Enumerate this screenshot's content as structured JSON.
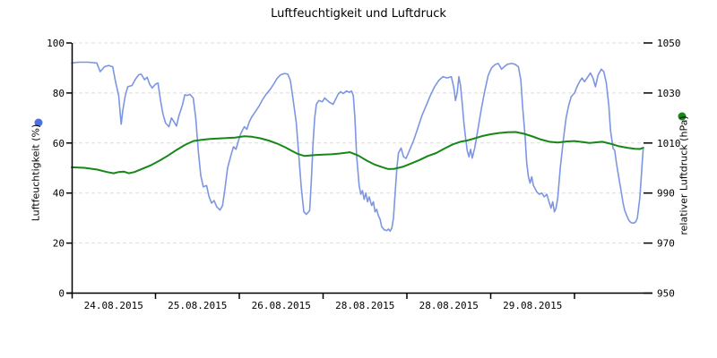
{
  "title": "Luftfeuchtigkeit und Luftdruck",
  "chart_data": {
    "type": "line",
    "title": "Luftfeuchtigkeit und Luftdruck",
    "grid": "horizontal-dashed",
    "x_axis": {
      "tick_labels": [
        "24.08.2015",
        "25.08.2015",
        "26.08.2015",
        "28.08.2015",
        "28.08.2015",
        "29.08.2015"
      ],
      "days_shown": 6.82
    },
    "y_left": {
      "label": "Luftfeuchtigkeit (%)",
      "min": 0,
      "max": 100,
      "ticks": [
        0,
        20,
        40,
        60,
        80,
        100
      ]
    },
    "y_right": {
      "label": "relativer Luftdruck (hPa)",
      "min": 950,
      "max": 1050,
      "ticks": [
        950,
        970,
        990,
        1010,
        1030,
        1050
      ]
    },
    "series": [
      {
        "name": "Luftfeuchtigkeit",
        "axis": "left",
        "color": "#7D96E3",
        "marker_color": "#4D71E0",
        "width": 1.6,
        "points": [
          [
            0.0,
            92
          ],
          [
            0.08,
            92.3
          ],
          [
            0.2,
            92.3
          ],
          [
            0.3,
            92
          ],
          [
            0.34,
            88.5
          ],
          [
            0.39,
            90.5
          ],
          [
            0.44,
            91
          ],
          [
            0.49,
            90.5
          ],
          [
            0.52,
            85
          ],
          [
            0.56,
            79
          ],
          [
            0.59,
            67.5
          ],
          [
            0.61,
            73
          ],
          [
            0.64,
            79
          ],
          [
            0.67,
            82.5
          ],
          [
            0.72,
            83
          ],
          [
            0.76,
            85.5
          ],
          [
            0.8,
            87.3
          ],
          [
            0.83,
            87.5
          ],
          [
            0.87,
            85.3
          ],
          [
            0.9,
            86.3
          ],
          [
            0.93,
            83.5
          ],
          [
            0.96,
            82
          ],
          [
            1.0,
            83.5
          ],
          [
            1.03,
            84
          ],
          [
            1.06,
            77
          ],
          [
            1.09,
            71.5
          ],
          [
            1.12,
            68
          ],
          [
            1.16,
            66.5
          ],
          [
            1.19,
            70
          ],
          [
            1.22,
            68.5
          ],
          [
            1.25,
            66.8
          ],
          [
            1.28,
            71
          ],
          [
            1.32,
            75
          ],
          [
            1.35,
            79.3
          ],
          [
            1.38,
            79
          ],
          [
            1.41,
            79.5
          ],
          [
            1.45,
            78
          ],
          [
            1.48,
            70
          ],
          [
            1.51,
            57
          ],
          [
            1.54,
            47
          ],
          [
            1.57,
            42.5
          ],
          [
            1.61,
            43
          ],
          [
            1.64,
            38.5
          ],
          [
            1.67,
            36
          ],
          [
            1.7,
            37
          ],
          [
            1.73,
            34.5
          ],
          [
            1.77,
            33.2
          ],
          [
            1.8,
            35
          ],
          [
            1.83,
            42
          ],
          [
            1.86,
            50
          ],
          [
            1.9,
            55
          ],
          [
            1.93,
            58.5
          ],
          [
            1.96,
            57.5
          ],
          [
            1.99,
            61
          ],
          [
            2.02,
            64
          ],
          [
            2.06,
            66.5
          ],
          [
            2.09,
            65.5
          ],
          [
            2.12,
            68.5
          ],
          [
            2.15,
            70.5
          ],
          [
            2.19,
            72.5
          ],
          [
            2.24,
            75
          ],
          [
            2.28,
            77.5
          ],
          [
            2.32,
            79.5
          ],
          [
            2.37,
            81.5
          ],
          [
            2.41,
            83.5
          ],
          [
            2.45,
            85.8
          ],
          [
            2.49,
            87.2
          ],
          [
            2.54,
            87.8
          ],
          [
            2.58,
            87.5
          ],
          [
            2.61,
            85
          ],
          [
            2.64,
            78
          ],
          [
            2.68,
            68
          ],
          [
            2.71,
            55
          ],
          [
            2.74,
            42
          ],
          [
            2.77,
            32.5
          ],
          [
            2.8,
            31.5
          ],
          [
            2.84,
            33
          ],
          [
            2.86,
            45
          ],
          [
            2.88,
            60
          ],
          [
            2.9,
            70
          ],
          [
            2.92,
            75.5
          ],
          [
            2.95,
            77
          ],
          [
            2.99,
            76.5
          ],
          [
            3.02,
            78
          ],
          [
            3.05,
            77
          ],
          [
            3.08,
            76.2
          ],
          [
            3.12,
            75.5
          ],
          [
            3.15,
            77.5
          ],
          [
            3.18,
            79.5
          ],
          [
            3.21,
            80.5
          ],
          [
            3.24,
            79.8
          ],
          [
            3.28,
            80.8
          ],
          [
            3.31,
            80.3
          ],
          [
            3.34,
            80.8
          ],
          [
            3.36,
            79
          ],
          [
            3.38,
            70
          ],
          [
            3.4,
            55
          ],
          [
            3.43,
            43
          ],
          [
            3.45,
            39.5
          ],
          [
            3.47,
            41
          ],
          [
            3.49,
            37.5
          ],
          [
            3.51,
            40
          ],
          [
            3.53,
            36.5
          ],
          [
            3.55,
            38.5
          ],
          [
            3.58,
            35
          ],
          [
            3.6,
            36.5
          ],
          [
            3.62,
            32.5
          ],
          [
            3.64,
            33.5
          ],
          [
            3.66,
            31
          ],
          [
            3.68,
            29.5
          ],
          [
            3.7,
            26.5
          ],
          [
            3.73,
            25.3
          ],
          [
            3.76,
            25
          ],
          [
            3.78,
            25.6
          ],
          [
            3.8,
            24.8
          ],
          [
            3.82,
            26
          ],
          [
            3.84,
            30
          ],
          [
            3.86,
            40
          ],
          [
            3.88,
            50
          ],
          [
            3.9,
            56
          ],
          [
            3.93,
            58
          ],
          [
            3.96,
            54.5
          ],
          [
            3.99,
            53.8
          ],
          [
            4.03,
            57
          ],
          [
            4.08,
            61
          ],
          [
            4.13,
            66
          ],
          [
            4.18,
            71
          ],
          [
            4.23,
            75
          ],
          [
            4.28,
            79
          ],
          [
            4.33,
            82.5
          ],
          [
            4.38,
            85
          ],
          [
            4.43,
            86.5
          ],
          [
            4.48,
            86
          ],
          [
            4.53,
            86.5
          ],
          [
            4.56,
            82
          ],
          [
            4.58,
            77
          ],
          [
            4.6,
            80
          ],
          [
            4.62,
            86.5
          ],
          [
            4.64,
            83
          ],
          [
            4.66,
            76
          ],
          [
            4.68,
            68
          ],
          [
            4.7,
            62
          ],
          [
            4.72,
            57
          ],
          [
            4.74,
            54.5
          ],
          [
            4.76,
            57.5
          ],
          [
            4.78,
            54
          ],
          [
            4.81,
            58
          ],
          [
            4.85,
            66
          ],
          [
            4.89,
            74
          ],
          [
            4.93,
            81
          ],
          [
            4.97,
            87
          ],
          [
            5.01,
            90
          ],
          [
            5.05,
            91.3
          ],
          [
            5.09,
            91.8
          ],
          [
            5.13,
            89.5
          ],
          [
            5.16,
            90.5
          ],
          [
            5.2,
            91.5
          ],
          [
            5.25,
            91.8
          ],
          [
            5.29,
            91.5
          ],
          [
            5.33,
            90.5
          ],
          [
            5.36,
            85
          ],
          [
            5.38,
            75
          ],
          [
            5.41,
            63
          ],
          [
            5.43,
            52
          ],
          [
            5.45,
            46.5
          ],
          [
            5.47,
            44
          ],
          [
            5.49,
            46.5
          ],
          [
            5.51,
            43
          ],
          [
            5.55,
            40.5
          ],
          [
            5.58,
            39.5
          ],
          [
            5.61,
            40
          ],
          [
            5.64,
            38.5
          ],
          [
            5.67,
            39.5
          ],
          [
            5.7,
            36
          ],
          [
            5.72,
            34
          ],
          [
            5.74,
            36.5
          ],
          [
            5.76,
            32.5
          ],
          [
            5.78,
            34
          ],
          [
            5.8,
            38
          ],
          [
            5.83,
            50
          ],
          [
            5.87,
            62
          ],
          [
            5.9,
            70
          ],
          [
            5.93,
            75
          ],
          [
            5.96,
            78.5
          ],
          [
            6.0,
            80
          ],
          [
            6.03,
            82.5
          ],
          [
            6.06,
            84.5
          ],
          [
            6.09,
            86
          ],
          [
            6.12,
            84.5
          ],
          [
            6.16,
            86.5
          ],
          [
            6.19,
            88
          ],
          [
            6.22,
            86
          ],
          [
            6.25,
            82.5
          ],
          [
            6.28,
            87
          ],
          [
            6.32,
            89.5
          ],
          [
            6.35,
            88.5
          ],
          [
            6.38,
            84
          ],
          [
            6.41,
            75
          ],
          [
            6.43,
            65
          ],
          [
            6.46,
            58
          ],
          [
            6.48,
            57
          ],
          [
            6.5,
            52
          ],
          [
            6.52,
            48
          ],
          [
            6.54,
            44
          ],
          [
            6.56,
            40
          ],
          [
            6.58,
            36
          ],
          [
            6.6,
            33
          ],
          [
            6.63,
            30.5
          ],
          [
            6.65,
            29
          ],
          [
            6.67,
            28.3
          ],
          [
            6.69,
            28
          ],
          [
            6.71,
            28
          ],
          [
            6.73,
            28.5
          ],
          [
            6.75,
            30
          ],
          [
            6.78,
            38
          ],
          [
            6.8,
            48
          ],
          [
            6.82,
            58
          ]
        ]
      },
      {
        "name": "relativer Luftdruck",
        "axis": "right",
        "color": "#178717",
        "marker_color": "#178717",
        "width": 2,
        "points": [
          [
            0.0,
            1000.3
          ],
          [
            0.15,
            1000.1
          ],
          [
            0.3,
            999.4
          ],
          [
            0.42,
            998.4
          ],
          [
            0.5,
            997.9
          ],
          [
            0.56,
            998.4
          ],
          [
            0.62,
            998.6
          ],
          [
            0.68,
            997.9
          ],
          [
            0.75,
            998.4
          ],
          [
            0.85,
            999.8
          ],
          [
            0.95,
            1001.2
          ],
          [
            1.05,
            1003.0
          ],
          [
            1.15,
            1005.0
          ],
          [
            1.25,
            1007.2
          ],
          [
            1.35,
            1009.2
          ],
          [
            1.45,
            1010.8
          ],
          [
            1.55,
            1011.3
          ],
          [
            1.65,
            1011.6
          ],
          [
            1.75,
            1011.8
          ],
          [
            1.85,
            1012.0
          ],
          [
            1.95,
            1012.2
          ],
          [
            2.06,
            1012.7
          ],
          [
            2.15,
            1012.5
          ],
          [
            2.25,
            1011.9
          ],
          [
            2.35,
            1011.0
          ],
          [
            2.45,
            1009.8
          ],
          [
            2.55,
            1008.3
          ],
          [
            2.62,
            1007.0
          ],
          [
            2.7,
            1005.6
          ],
          [
            2.78,
            1004.8
          ],
          [
            2.84,
            1005.0
          ],
          [
            2.9,
            1005.2
          ],
          [
            3.0,
            1005.4
          ],
          [
            3.1,
            1005.5
          ],
          [
            3.2,
            1005.8
          ],
          [
            3.32,
            1006.3
          ],
          [
            3.42,
            1005.0
          ],
          [
            3.52,
            1003.0
          ],
          [
            3.62,
            1001.3
          ],
          [
            3.72,
            1000.2
          ],
          [
            3.78,
            999.6
          ],
          [
            3.85,
            999.7
          ],
          [
            3.95,
            1000.5
          ],
          [
            4.05,
            1001.8
          ],
          [
            4.15,
            1003.2
          ],
          [
            4.25,
            1004.8
          ],
          [
            4.35,
            1006.0
          ],
          [
            4.45,
            1007.8
          ],
          [
            4.55,
            1009.5
          ],
          [
            4.65,
            1010.6
          ],
          [
            4.72,
            1011.0
          ],
          [
            4.8,
            1011.8
          ],
          [
            4.9,
            1012.8
          ],
          [
            5.0,
            1013.5
          ],
          [
            5.1,
            1014.0
          ],
          [
            5.2,
            1014.3
          ],
          [
            5.3,
            1014.4
          ],
          [
            5.4,
            1013.7
          ],
          [
            5.5,
            1012.6
          ],
          [
            5.6,
            1011.4
          ],
          [
            5.7,
            1010.5
          ],
          [
            5.8,
            1010.2
          ],
          [
            5.9,
            1010.6
          ],
          [
            6.0,
            1010.8
          ],
          [
            6.1,
            1010.4
          ],
          [
            6.18,
            1010.0
          ],
          [
            6.26,
            1010.3
          ],
          [
            6.33,
            1010.5
          ],
          [
            6.43,
            1009.7
          ],
          [
            6.53,
            1008.7
          ],
          [
            6.63,
            1008.1
          ],
          [
            6.72,
            1007.7
          ],
          [
            6.78,
            1007.6
          ],
          [
            6.82,
            1008.1
          ]
        ]
      }
    ],
    "colors": {
      "grid": "#DCDCDC",
      "axis": "#000000",
      "humidity_line": "#7D96E3",
      "pressure_line": "#178717"
    }
  }
}
